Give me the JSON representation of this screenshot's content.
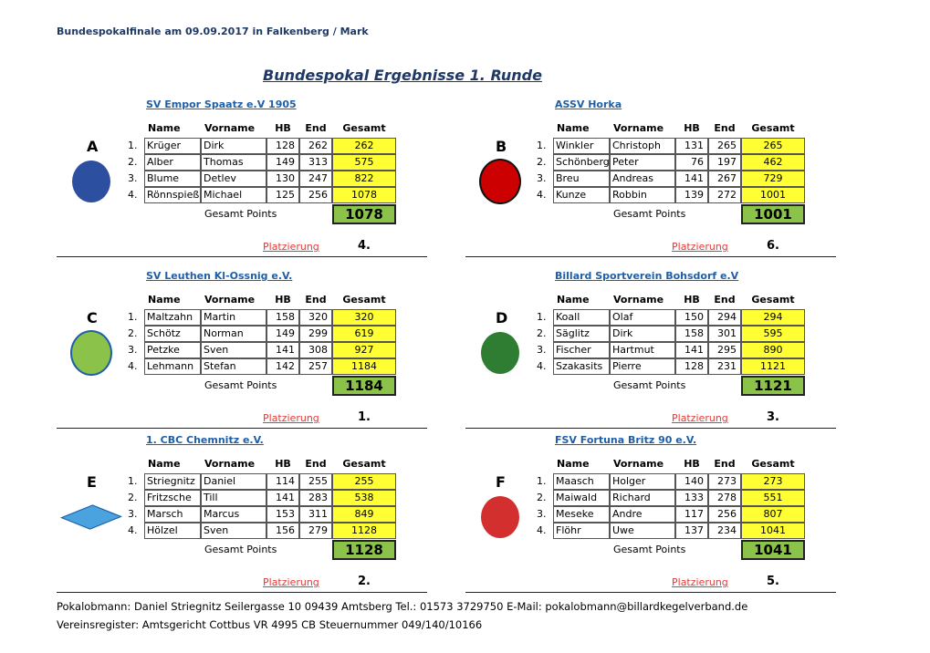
{
  "header": {
    "title": "Bundespokalfinale am 09.09.2017 in Falkenberg / Mark",
    "heading": "Bundespokal Ergebnisse 1. Runde"
  },
  "columns": [
    "Name",
    "Vorname",
    "HB",
    "End",
    "Gesamt"
  ],
  "ranks": [
    "1.",
    "2.",
    "3.",
    "4."
  ],
  "total_label": "Gesamt Points",
  "place_label": "Platzierung",
  "groups": [
    {
      "letter": "A",
      "team": "SV Empor Spaatz e.V 1905",
      "rows": [
        [
          "Krüger",
          "Dirk",
          "128",
          "262",
          "262"
        ],
        [
          "Alber",
          "Thomas",
          "149",
          "313",
          "575"
        ],
        [
          "Blume",
          "Detlev",
          "130",
          "247",
          "822"
        ],
        [
          "Rönnspieß",
          "Michael",
          "125",
          "256",
          "1078"
        ]
      ],
      "total": "1078",
      "place": "4."
    },
    {
      "letter": "B",
      "team": "ASSV Horka",
      "rows": [
        [
          "Winkler",
          "Christoph",
          "131",
          "265",
          "265"
        ],
        [
          "Schönberg",
          "Peter",
          "76",
          "197",
          "462"
        ],
        [
          "Breu",
          "Andreas",
          "141",
          "267",
          "729"
        ],
        [
          "Kunze",
          "Robbin",
          "139",
          "272",
          "1001"
        ]
      ],
      "total": "1001",
      "place": "6."
    },
    {
      "letter": "C",
      "team": "SV Leuthen Kl-Ossnig e.V.",
      "rows": [
        [
          "Maltzahn",
          "Martin",
          "158",
          "320",
          "320"
        ],
        [
          "Schötz",
          "Norman",
          "149",
          "299",
          "619"
        ],
        [
          "Petzke",
          "Sven",
          "141",
          "308",
          "927"
        ],
        [
          "Lehmann",
          "Stefan",
          "142",
          "257",
          "1184"
        ]
      ],
      "total": "1184",
      "place": "1."
    },
    {
      "letter": "D",
      "team": "Billard Sportverein Bohsdorf e.V",
      "rows": [
        [
          "Koall",
          "Olaf",
          "150",
          "294",
          "294"
        ],
        [
          "Säglitz",
          "Dirk",
          "158",
          "301",
          "595"
        ],
        [
          "Fischer",
          "Hartmut",
          "141",
          "295",
          "890"
        ],
        [
          "Szakasits",
          "Pierre",
          "128",
          "231",
          "1121"
        ]
      ],
      "total": "1121",
      "place": "3."
    },
    {
      "letter": "E",
      "team": "1. CBC Chemnitz e.V.",
      "rows": [
        [
          "Striegnitz",
          "Daniel",
          "114",
          "255",
          "255"
        ],
        [
          "Fritzsche",
          "Till",
          "141",
          "283",
          "538"
        ],
        [
          "Marsch",
          "Marcus",
          "153",
          "311",
          "849"
        ],
        [
          "Hölzel",
          "Sven",
          "156",
          "279",
          "1128"
        ]
      ],
      "total": "1128",
      "place": "2."
    },
    {
      "letter": "F",
      "team": "FSV Fortuna Britz 90 e.V.",
      "rows": [
        [
          "Maasch",
          "Holger",
          "140",
          "273",
          "273"
        ],
        [
          "Maiwald",
          "Richard",
          "133",
          "278",
          "551"
        ],
        [
          "Meseke",
          "Andre",
          "117",
          "256",
          "807"
        ],
        [
          "Flöhr",
          "Uwe",
          "137",
          "234",
          "1041"
        ]
      ],
      "total": "1041",
      "place": "5."
    }
  ],
  "footer": {
    "line1": "Pokalobmann: Daniel Striegnitz  Seilergasse 10  09439 Amtsberg Tel.: 01573 3729750  E-Mail: pokalobmann@billardkegelverband.de",
    "line2": "Vereinsregister: Amtsgericht Cottbus VR 4995 CB Steuernummer 049/140/10166"
  }
}
